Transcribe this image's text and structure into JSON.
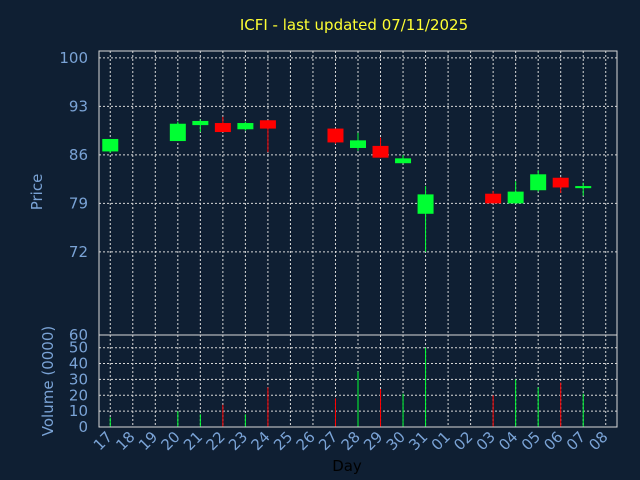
{
  "chart_data": {
    "type": "candlestick",
    "title": "ICFI - last updated 07/11/2025",
    "xlabel": "Day",
    "price_axis": {
      "label": "Price",
      "ylim": [
        60,
        101
      ],
      "ticks": [
        100,
        93,
        86,
        79,
        72,
        60
      ]
    },
    "volume_axis": {
      "label": "Volume (0000)",
      "ylim": [
        0,
        58
      ],
      "ticks": [
        50,
        40,
        30,
        20,
        10,
        0
      ]
    },
    "days": [
      "17",
      "18",
      "19",
      "20",
      "21",
      "22",
      "23",
      "24",
      "25",
      "26",
      "27",
      "28",
      "29",
      "30",
      "31",
      "01",
      "02",
      "03",
      "04",
      "05",
      "06",
      "07",
      "08"
    ],
    "up_color": "#00ff33",
    "down_color": "#ff0000",
    "grid": true,
    "candles": [
      {
        "day": "17",
        "open": 86.5,
        "close": 88.3,
        "high": 88.3,
        "low": 86.3,
        "volume": 6
      },
      {
        "day": "20",
        "open": 88.0,
        "close": 90.5,
        "high": 90.8,
        "low": 88.0,
        "volume": 10
      },
      {
        "day": "21",
        "open": 90.3,
        "close": 90.9,
        "high": 91.1,
        "low": 89.3,
        "volume": 8
      },
      {
        "day": "22",
        "open": 90.6,
        "close": 89.3,
        "high": 91.5,
        "low": 89.3,
        "volume": 14
      },
      {
        "day": "23",
        "open": 89.7,
        "close": 90.6,
        "high": 90.8,
        "low": 89.5,
        "volume": 8
      },
      {
        "day": "24",
        "open": 91.0,
        "close": 89.8,
        "high": 91.0,
        "low": 86.4,
        "volume": 25
      },
      {
        "day": "27",
        "open": 89.8,
        "close": 87.8,
        "high": 89.8,
        "low": 87.6,
        "volume": 18
      },
      {
        "day": "28",
        "open": 87.0,
        "close": 88.1,
        "high": 89.2,
        "low": 86.6,
        "volume": 35
      },
      {
        "day": "29",
        "open": 87.3,
        "close": 85.6,
        "high": 88.5,
        "low": 85.6,
        "volume": 24
      },
      {
        "day": "30",
        "open": 84.8,
        "close": 85.5,
        "high": 86.0,
        "low": 84.8,
        "volume": 21
      },
      {
        "day": "31",
        "open": 77.5,
        "close": 80.3,
        "high": 81.5,
        "low": 72.0,
        "volume": 50
      },
      {
        "day": "03",
        "open": 80.4,
        "close": 79.0,
        "high": 80.8,
        "low": 79.0,
        "volume": 20
      },
      {
        "day": "04",
        "open": 79.0,
        "close": 80.7,
        "high": 82.2,
        "low": 79.0,
        "volume": 30
      },
      {
        "day": "05",
        "open": 80.9,
        "close": 83.2,
        "high": 83.8,
        "low": 80.7,
        "volume": 25
      },
      {
        "day": "06",
        "open": 82.7,
        "close": 81.3,
        "high": 82.8,
        "low": 80.5,
        "volume": 28
      },
      {
        "day": "07",
        "open": 81.2,
        "close": 81.5,
        "high": 82.0,
        "low": 80.1,
        "volume": 21
      }
    ]
  }
}
